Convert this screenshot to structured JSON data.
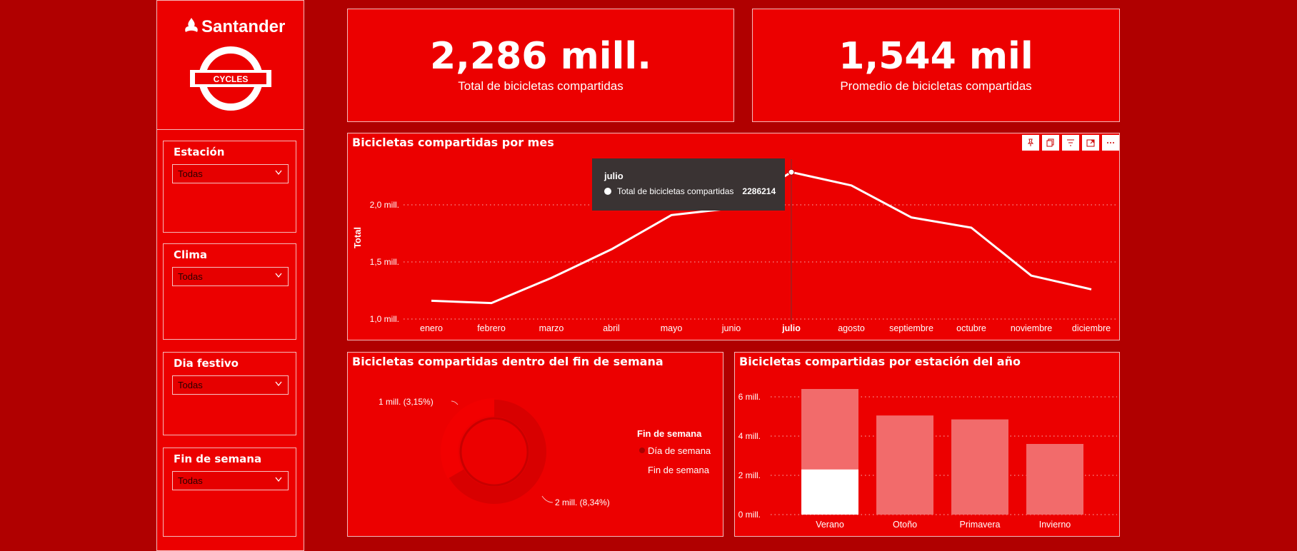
{
  "brand": {
    "name": "Santander",
    "sub_logo_text": "CYCLES"
  },
  "slicers": [
    {
      "title": "Estación",
      "value": "Todas"
    },
    {
      "title": "Clima",
      "value": "Todas"
    },
    {
      "title": "Dia festivo",
      "value": "Todas"
    },
    {
      "title": "Fin de semana",
      "value": "Todas"
    }
  ],
  "kpis": [
    {
      "value": "2,286 mill.",
      "label": "Total de bicicletas compartidas"
    },
    {
      "value": "1,544 mil",
      "label": "Promedio de bicicletas compartidas"
    }
  ],
  "line_chart": {
    "title": "Bicicletas compartidas por mes",
    "ylabel": "Total",
    "yticks": [
      "2,0 mill.",
      "1,5 mill.",
      "1,0 mill."
    ],
    "tooltip": {
      "title": "julio",
      "series": "Total de bicicletas compartidas",
      "value": "2286214"
    },
    "toolbar_icons": [
      "pin-icon",
      "copy-icon",
      "filter-icon",
      "focus-mode-icon",
      "more-options-icon"
    ]
  },
  "donut_chart": {
    "title": "Bicicletas compartidas dentro del fin de semana",
    "legend_title": "Fin de semana",
    "label_small": "1 mill. (3,15%)",
    "label_large": "2 mill. (8,34%)"
  },
  "bar_chart": {
    "title": "Bicicletas compartidas por estación del año",
    "yticks": [
      "6 mill.",
      "4 mill.",
      "2 mill.",
      "0 mill."
    ]
  },
  "colors": {
    "background": "#b00000",
    "panel": "#ec0000",
    "line": "#ffffff",
    "bar": "#f26b6b",
    "donut_dark": "#d80000"
  },
  "chart_data": [
    {
      "type": "line",
      "title": "Bicicletas compartidas por mes",
      "ylabel": "Total",
      "categories": [
        "enero",
        "febrero",
        "marzo",
        "abril",
        "mayo",
        "junio",
        "julio",
        "agosto",
        "septiembre",
        "octubre",
        "noviembre",
        "diciembre"
      ],
      "values": [
        1.16,
        1.14,
        1.36,
        1.61,
        1.91,
        1.97,
        2.286214,
        2.17,
        1.89,
        1.8,
        1.38,
        1.26
      ],
      "ylim": [
        1.0,
        2.4
      ],
      "highlighted": "julio",
      "grid": true
    },
    {
      "type": "pie",
      "title": "Bicicletas compartidas dentro del fin de semana",
      "legend_title": "Fin de semana",
      "labels": [
        "Día de semana",
        "Fin de semana"
      ],
      "values": [
        2,
        1
      ],
      "legend_position": "right"
    },
    {
      "type": "bar",
      "title": "Bicicletas compartidas por estación del año",
      "categories": [
        "Verano",
        "Otoño",
        "Primavera",
        "Invierno"
      ],
      "values": [
        6.4,
        5.05,
        4.85,
        3.6
      ],
      "highlight_values": [
        2.3,
        0,
        0,
        0
      ],
      "ylim": [
        0,
        6.8
      ],
      "grid": true
    }
  ]
}
